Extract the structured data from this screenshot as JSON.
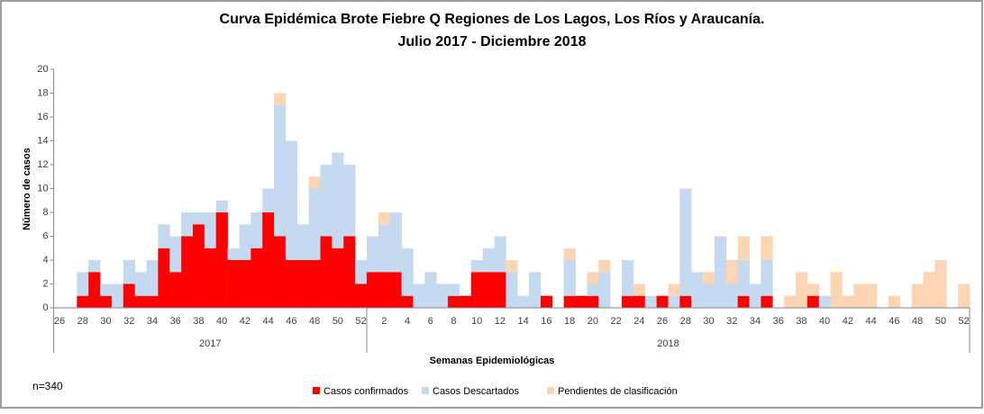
{
  "chart_data": {
    "type": "stacked_bar",
    "title": [
      "Curva Epidémica Brote Fiebre  Q Regiones  de Los Lagos, Los Ríos y Araucanía.",
      "Julio 2017 - Diciembre 2018"
    ],
    "x_label": "Semanas Epidemiológicas",
    "y_label": "Número de casos",
    "annotation": "n=340",
    "x_groups": [
      "2017",
      "2018"
    ],
    "categories": [
      "26",
      null,
      "28",
      null,
      "30",
      null,
      "32",
      null,
      "34",
      null,
      "36",
      null,
      "38",
      null,
      "40",
      null,
      "42",
      null,
      "44",
      null,
      "46",
      null,
      "48",
      null,
      "50",
      null,
      "52",
      null,
      "2",
      null,
      "4",
      null,
      "6",
      null,
      "8",
      null,
      "10",
      null,
      "12",
      null,
      "14",
      null,
      "16",
      null,
      "18",
      null,
      "20",
      null,
      "22",
      null,
      "24",
      null,
      "26",
      null,
      "28",
      null,
      "30",
      null,
      "32",
      null,
      "34",
      null,
      "36",
      null,
      "38",
      null,
      "40",
      null,
      "42",
      null,
      "44",
      null,
      "46",
      null,
      "48",
      null,
      "50",
      null,
      "52"
    ],
    "series": [
      {
        "name": "Casos confirmados",
        "color": "#ff0000",
        "values": [
          0,
          0,
          1,
          3,
          1,
          0,
          2,
          1,
          1,
          5,
          3,
          6,
          7,
          5,
          8,
          4,
          4,
          5,
          8,
          6,
          4,
          4,
          4,
          6,
          5,
          6,
          2,
          3,
          3,
          3,
          1,
          0,
          0,
          0,
          1,
          1,
          3,
          3,
          3,
          0,
          0,
          0,
          1,
          0,
          1,
          1,
          1,
          0,
          0,
          1,
          1,
          0,
          1,
          0,
          1,
          0,
          0,
          0,
          0,
          1,
          0,
          1,
          0,
          0,
          0,
          1,
          0,
          0,
          0,
          0,
          0,
          0,
          0,
          0,
          0,
          0,
          0,
          0,
          0
        ]
      },
      {
        "name": "Casos Descartados",
        "color": "#c5d9f1",
        "values": [
          0,
          0,
          2,
          1,
          1,
          2,
          2,
          2,
          3,
          2,
          3,
          2,
          1,
          3,
          1,
          1,
          3,
          3,
          2,
          11,
          10,
          3,
          6,
          6,
          8,
          6,
          2,
          3,
          4,
          5,
          4,
          2,
          3,
          2,
          1,
          0,
          1,
          2,
          3,
          3,
          1,
          3,
          0,
          0,
          3,
          0,
          1,
          3,
          0,
          3,
          0,
          1,
          0,
          1,
          9,
          3,
          2,
          6,
          2,
          3,
          2,
          3,
          0,
          0,
          0,
          0,
          1,
          0,
          0,
          0,
          0,
          0,
          0,
          0,
          0,
          0,
          0,
          0,
          0
        ]
      },
      {
        "name": "Pendientes de clasificación",
        "color": "#fcd5b4",
        "values": [
          0,
          0,
          0,
          0,
          0,
          0,
          0,
          0,
          0,
          0,
          0,
          0,
          0,
          0,
          0,
          0,
          0,
          0,
          0,
          1,
          0,
          0,
          1,
          0,
          0,
          0,
          0,
          0,
          1,
          0,
          0,
          0,
          0,
          0,
          0,
          0,
          0,
          0,
          0,
          1,
          0,
          0,
          0,
          0,
          1,
          0,
          1,
          1,
          0,
          0,
          1,
          0,
          0,
          1,
          0,
          0,
          1,
          0,
          2,
          2,
          0,
          2,
          0,
          1,
          3,
          1,
          0,
          3,
          1,
          2,
          2,
          0,
          1,
          0,
          2,
          3,
          4,
          0,
          2
        ]
      }
    ],
    "ylim": [
      0,
      20
    ],
    "yticks": [
      0,
      2,
      4,
      6,
      8,
      10,
      12,
      14,
      16,
      18,
      20
    ],
    "grid": false
  }
}
